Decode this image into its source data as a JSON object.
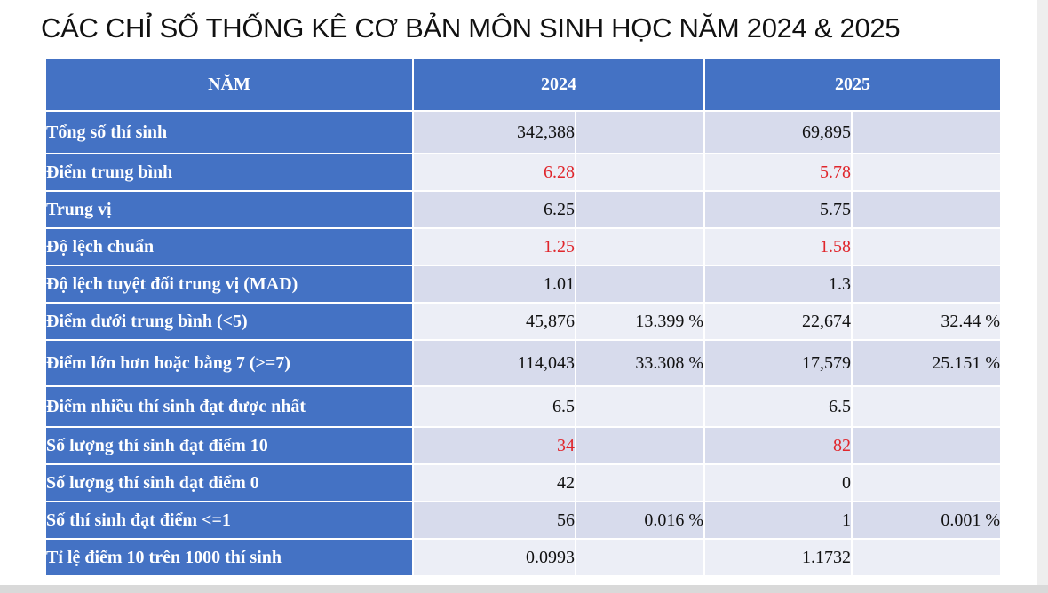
{
  "title": "CÁC CHỈ SỐ THỐNG KÊ CƠ BẢN MÔN SINH HỌC NĂM 2024 & 2025",
  "header": {
    "col_label": "NĂM",
    "year1": "2024",
    "year2": "2025"
  },
  "colors": {
    "header_blue": "#4472c4",
    "highlight_red": "#e0262c",
    "row_shade_dark": "#d7dbec",
    "row_shade_light": "#eceef6"
  },
  "rows": [
    {
      "label": "Tổng số thí sinh",
      "v2024": "342,388",
      "p2024": "",
      "v2025": "69,895",
      "p2025": "",
      "highlight": false
    },
    {
      "label": "Điểm trung bình",
      "v2024": "6.28",
      "p2024": "",
      "v2025": "5.78",
      "p2025": "",
      "highlight": true
    },
    {
      "label": "Trung vị",
      "v2024": "6.25",
      "p2024": "",
      "v2025": "5.75",
      "p2025": "",
      "highlight": false
    },
    {
      "label": "Độ lệch chuẩn",
      "v2024": "1.25",
      "p2024": "",
      "v2025": "1.58",
      "p2025": "",
      "highlight": true
    },
    {
      "label": "Độ lệch tuyệt đối trung vị (MAD)",
      "v2024": "1.01",
      "p2024": "",
      "v2025": "1.3",
      "p2025": "",
      "highlight": false
    },
    {
      "label": "Điểm dưới trung bình (<5)",
      "v2024": "45,876",
      "p2024": "13.399 %",
      "v2025": "22,674",
      "p2025": "32.44 %",
      "highlight": false
    },
    {
      "label": "Điểm lớn hơn hoặc bằng 7 (>=7)",
      "v2024": "114,043",
      "p2024": "33.308 %",
      "v2025": "17,579",
      "p2025": "25.151 %",
      "highlight": false
    },
    {
      "label": "Điểm nhiều thí sinh đạt được nhất",
      "v2024": "6.5",
      "p2024": "",
      "v2025": "6.5",
      "p2025": "",
      "highlight": false
    },
    {
      "label": "Số lượng thí sinh đạt điểm 10",
      "v2024": "34",
      "p2024": "",
      "v2025": "82",
      "p2025": "",
      "highlight": true
    },
    {
      "label": "Số lượng thí sinh đạt điểm 0",
      "v2024": "42",
      "p2024": "",
      "v2025": "0",
      "p2025": "",
      "highlight": false
    },
    {
      "label": "Số thí sinh đạt điểm <=1",
      "v2024": "56",
      "p2024": "0.016 %",
      "v2025": "1",
      "p2025": "0.001 %",
      "highlight": false
    },
    {
      "label": "Tỉ lệ điểm 10 trên 1000 thí sinh",
      "v2024": "0.0993",
      "p2024": "",
      "v2025": "1.1732",
      "p2025": "",
      "highlight": false
    }
  ]
}
